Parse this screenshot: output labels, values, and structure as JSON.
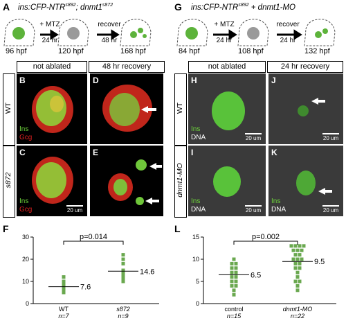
{
  "left": {
    "title": "ins:CFP-NTR",
    "title_sup": "s892",
    "title_rest": "; dnmt1",
    "title_sup2": "s872",
    "steps": [
      {
        "label": "96 hpf"
      },
      {
        "label": "120 hpf"
      },
      {
        "label": "168 hpf"
      }
    ],
    "arrows": [
      {
        "top": "+ MTZ",
        "bottom": "24 hr"
      },
      {
        "top": "recover",
        "bottom": "48 hr"
      }
    ],
    "headers": [
      "not ablated",
      "48 hr recovery"
    ],
    "rows": [
      "WT",
      "s872"
    ],
    "panel_letters": [
      "B",
      "D",
      "C",
      "E"
    ],
    "stains": [
      "Ins",
      "Gcg"
    ],
    "scale": "20 um"
  },
  "right": {
    "title": "ins:CFP-NTR",
    "title_sup": "s892",
    "title_rest": " + dnmt1-MO",
    "steps": [
      {
        "label": "84 hpf"
      },
      {
        "label": "108 hpf"
      },
      {
        "label": "132 hpf"
      }
    ],
    "arrows": [
      {
        "top": "+ MTZ",
        "bottom": "24 hr"
      },
      {
        "top": "recover",
        "bottom": "24 hr"
      }
    ],
    "headers": [
      "not ablated",
      "24 hr recovery"
    ],
    "rows": [
      "WT",
      "dnmt1-MO"
    ],
    "panel_letters": [
      "H",
      "J",
      "I",
      "K"
    ],
    "stains": [
      "Ins",
      "DNA"
    ],
    "scale": "20 um"
  },
  "panel_labels": {
    "A": "A",
    "G": "G",
    "F": "F",
    "L": "L"
  },
  "chart_data": [
    {
      "type": "scatter",
      "panel": "F",
      "categories": [
        "WT",
        "s872"
      ],
      "category_n": [
        "n=7",
        "n=9"
      ],
      "ylim": [
        0,
        30
      ],
      "yticks": [
        0,
        10,
        20,
        30
      ],
      "p_value": "p=0.014",
      "means": [
        7.6,
        14.6
      ],
      "mean_labels": [
        "7.6",
        "14.6"
      ],
      "points": [
        [
          5,
          6,
          7,
          8,
          9,
          10,
          12
        ],
        [
          10,
          11,
          12,
          13,
          14,
          15,
          18,
          20,
          22
        ]
      ],
      "color": "#6aa84f"
    },
    {
      "type": "scatter",
      "panel": "L",
      "categories": [
        "control",
        "dnmt1-MO"
      ],
      "category_n": [
        "n=15",
        "n=22"
      ],
      "ylim": [
        0,
        15
      ],
      "yticks": [
        0,
        5,
        10,
        15
      ],
      "p_value": "p=0.002",
      "means": [
        6.5,
        9.5
      ],
      "mean_labels": [
        "6.5",
        "9.5"
      ],
      "points": [
        [
          2,
          3,
          4,
          4,
          5,
          5,
          6,
          6,
          7,
          7,
          8,
          8,
          9,
          9,
          10
        ],
        [
          3,
          4,
          5,
          5,
          6,
          7,
          8,
          8,
          9,
          9,
          10,
          10,
          10,
          11,
          11,
          12,
          12,
          12,
          13,
          13,
          13,
          13
        ]
      ],
      "color": "#6aa84f"
    }
  ]
}
